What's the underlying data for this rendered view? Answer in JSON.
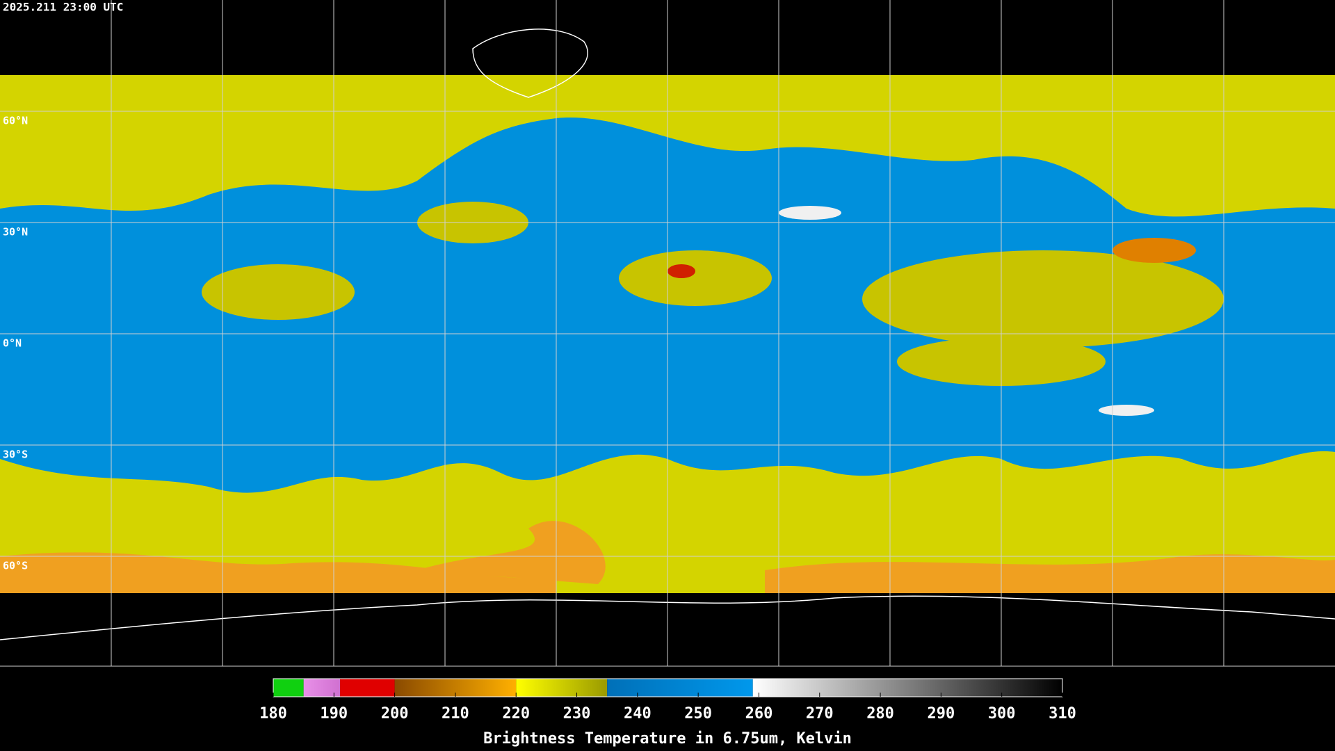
{
  "header": {
    "timestamp": "2025.211 23:00 UTC"
  },
  "map": {
    "lat_labels": [
      "60°N",
      "30°N",
      "0°N",
      "30°S",
      "60°S"
    ]
  },
  "colorbar": {
    "title": "Brightness Temperature in 6.75um, Kelvin",
    "range": [
      180,
      310
    ],
    "ticks": [
      180,
      190,
      200,
      210,
      220,
      230,
      240,
      250,
      260,
      270,
      280,
      290,
      300,
      310
    ],
    "segments": [
      {
        "from": 180,
        "to": 185,
        "colors": [
          "#10d010",
          "#10d010"
        ]
      },
      {
        "from": 185,
        "to": 191,
        "colors": [
          "#e890e8",
          "#d070d0"
        ]
      },
      {
        "from": 191,
        "to": 200,
        "colors": [
          "#e00000",
          "#e00000"
        ]
      },
      {
        "from": 200,
        "to": 220,
        "colors": [
          "#8a4a00",
          "#ffb000"
        ]
      },
      {
        "from": 220,
        "to": 235,
        "colors": [
          "#ffff00",
          "#9a9a00"
        ]
      },
      {
        "from": 235,
        "to": 259,
        "colors": [
          "#0070b8",
          "#0098ec"
        ]
      },
      {
        "from": 259,
        "to": 310,
        "colors": [
          "#ffffff",
          "#000000"
        ]
      }
    ]
  }
}
